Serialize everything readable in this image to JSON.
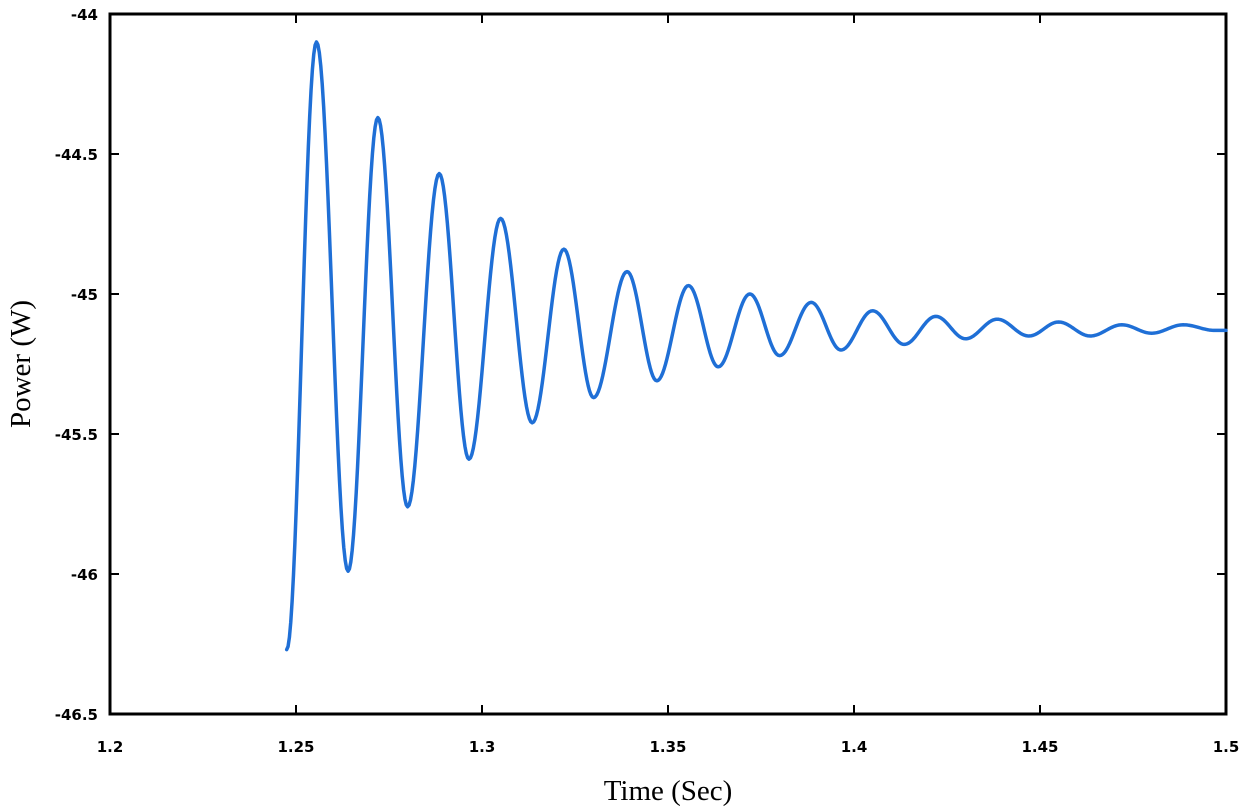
{
  "chart_data": {
    "type": "line",
    "title": "",
    "xlabel": "Time (Sec)",
    "ylabel": "Power (W)",
    "xlim": [
      1.2,
      1.5
    ],
    "ylim": [
      -46.5,
      -44
    ],
    "xticks": [
      1.2,
      1.25,
      1.3,
      1.35,
      1.4,
      1.45,
      1.5
    ],
    "xtick_labels": [
      "1.2",
      "1.25",
      "1.3",
      "1.35",
      "1.4",
      "1.45",
      "1.5"
    ],
    "yticks": [
      -44,
      -44.5,
      -45,
      -45.5,
      -46,
      -46.5
    ],
    "ytick_labels": [
      "-44",
      "-44.5",
      "-45",
      "-45.5",
      "-46",
      "-46.5"
    ],
    "grid": false,
    "legend": "none",
    "series": [
      {
        "color": "#1f6fd6",
        "x": [
          1.2475,
          1.2555,
          1.264,
          1.272,
          1.28,
          1.2885,
          1.2965,
          1.305,
          1.3135,
          1.322,
          1.33,
          1.339,
          1.347,
          1.3555,
          1.3635,
          1.372,
          1.38,
          1.3885,
          1.3965,
          1.405,
          1.4135,
          1.422,
          1.43,
          1.4385,
          1.447,
          1.455,
          1.4635,
          1.472,
          1.48,
          1.4885,
          1.497,
          1.5
        ],
        "y": [
          -46.27,
          -44.1,
          -45.99,
          -44.37,
          -45.76,
          -44.57,
          -45.59,
          -44.73,
          -45.46,
          -44.84,
          -45.37,
          -44.92,
          -45.31,
          -44.97,
          -45.26,
          -45.0,
          -45.22,
          -45.03,
          -45.2,
          -45.06,
          -45.18,
          -45.08,
          -45.16,
          -45.09,
          -45.15,
          -45.1,
          -45.15,
          -45.11,
          -45.14,
          -45.11,
          -45.13,
          -45.13
        ]
      }
    ]
  }
}
